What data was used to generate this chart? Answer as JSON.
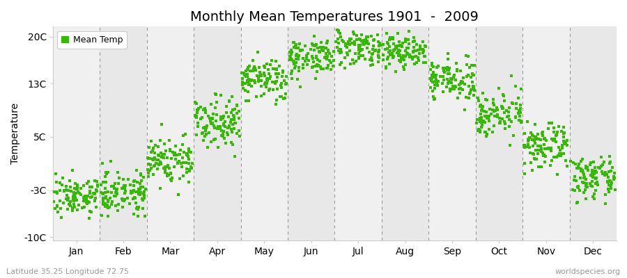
{
  "title": "Monthly Mean Temperatures 1901  -  2009",
  "ylabel": "Temperature",
  "subtitle_left": "Latitude 35.25 Longitude 72.75",
  "subtitle_right": "worldspecies.org",
  "legend_label": "Mean Temp",
  "dot_color": "#33bb00",
  "background_color": "#ffffff",
  "plot_bg_odd": "#f0f0f0",
  "plot_bg_even": "#e8e8e8",
  "yticks": [
    -10,
    -3,
    5,
    13,
    20
  ],
  "ytick_labels": [
    "-10C",
    "-3C",
    "5C",
    "13C",
    "20C"
  ],
  "ylim": [
    -10.5,
    21.5
  ],
  "months": [
    "Jan",
    "Feb",
    "Mar",
    "Apr",
    "May",
    "Jun",
    "Jul",
    "Aug",
    "Sep",
    "Oct",
    "Nov",
    "Dec"
  ],
  "month_means": [
    -3.8,
    -3.2,
    1.5,
    7.5,
    13.5,
    17.0,
    18.5,
    17.8,
    13.5,
    8.5,
    3.5,
    -1.2
  ],
  "month_stds": [
    1.4,
    1.6,
    1.8,
    1.8,
    1.6,
    1.4,
    1.3,
    1.3,
    1.4,
    1.6,
    1.6,
    1.5
  ],
  "n_points": 109,
  "marker_size": 3,
  "title_fontsize": 14,
  "axis_fontsize": 10,
  "tick_fontsize": 10,
  "vline_color": "#999999",
  "spine_color": "#cccccc"
}
